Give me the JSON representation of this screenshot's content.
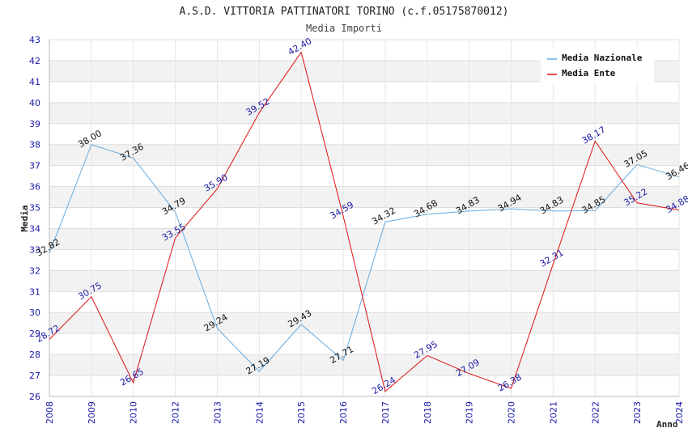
{
  "chart_data": {
    "type": "line",
    "title": "A.S.D. VITTORIA PATTINATORI TORINO (c.f.05175870012)",
    "subtitle": "Media Importi",
    "xlabel": "Anno",
    "ylabel": "Media",
    "categories": [
      "2008",
      "2009",
      "2010",
      "2012",
      "2013",
      "2014",
      "2015",
      "2016",
      "2017",
      "2018",
      "2019",
      "2020",
      "2021",
      "2022",
      "2023",
      "2024"
    ],
    "ylim": [
      26,
      43
    ],
    "yticks": [
      "26",
      "27",
      "28",
      "29",
      "30",
      "31",
      "32",
      "33",
      "34",
      "35",
      "36",
      "37",
      "38",
      "39",
      "40",
      "41",
      "42",
      "43"
    ],
    "grid": true,
    "legend_position": "top-right",
    "series": [
      {
        "name": "Media Nazionale",
        "color": "#66aadd",
        "label_color": "#111111",
        "values": [
          32.82,
          38.0,
          37.36,
          34.79,
          29.24,
          27.19,
          29.43,
          27.71,
          34.32,
          34.68,
          34.83,
          34.94,
          34.83,
          34.85,
          37.05,
          36.46
        ],
        "labels": [
          "32.82",
          "38.00",
          "37.36",
          "34.79",
          "29.24",
          "27.19",
          "29.43",
          "27.71",
          "34.32",
          "34.68",
          "34.83",
          "34.94",
          "34.83",
          "34.85",
          "37.05",
          "36.46"
        ]
      },
      {
        "name": "Media Ente",
        "color": "#dd1111",
        "label_color": "#1a1aa6",
        "values": [
          28.72,
          30.75,
          26.65,
          33.55,
          35.9,
          39.52,
          42.4,
          34.59,
          26.24,
          27.95,
          27.09,
          26.38,
          32.31,
          38.17,
          35.22,
          34.88
        ],
        "labels": [
          "28.72",
          "30.75",
          "26.65",
          "33.55",
          "35.90",
          "39.52",
          "42.40",
          "34.59",
          "26.24",
          "27.95",
          "27.09",
          "26.38",
          "32.31",
          "38.17",
          "35.22",
          "34.88"
        ]
      }
    ]
  }
}
